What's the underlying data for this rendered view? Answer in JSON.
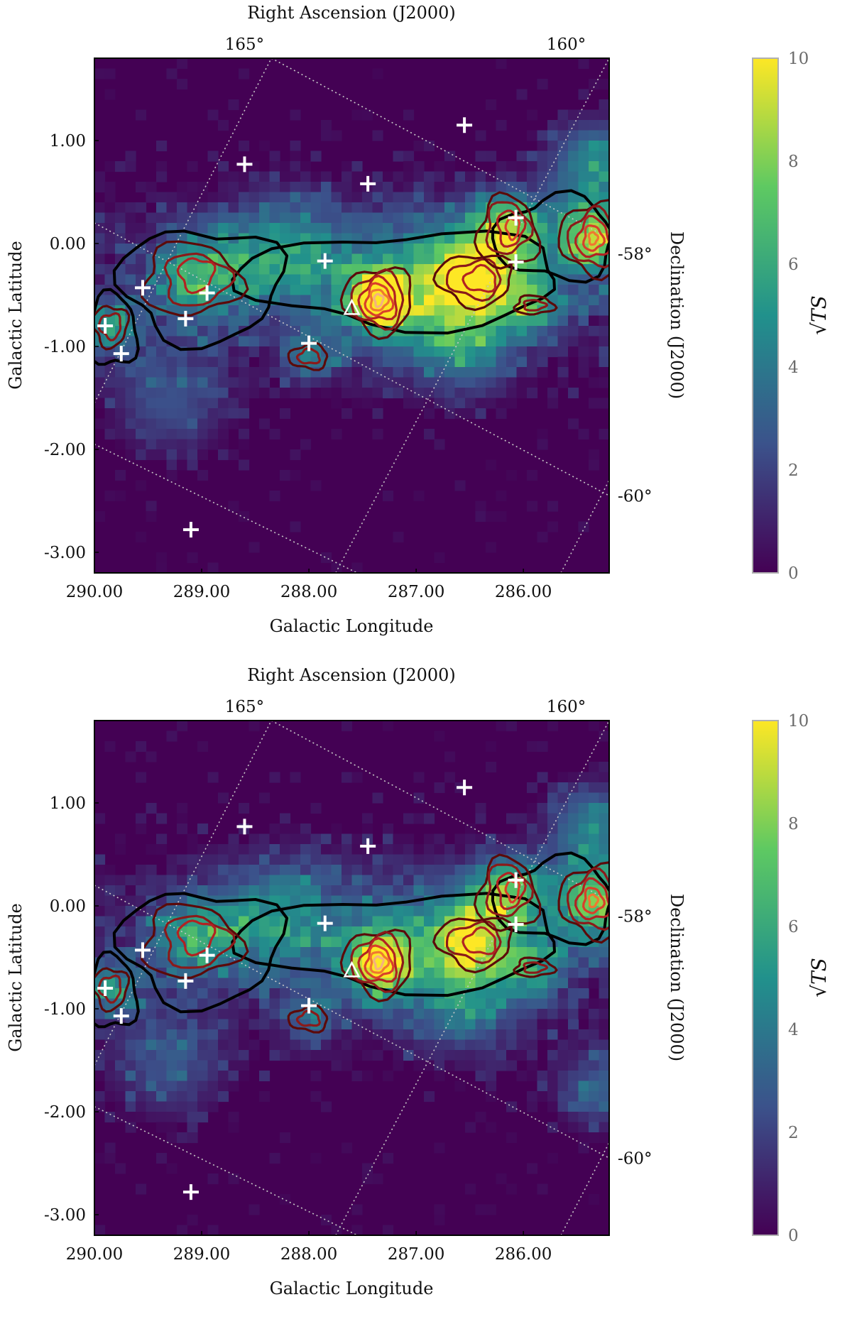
{
  "colors": {
    "background": "#440154",
    "grid": "#c8c8c8",
    "frame": "#000000",
    "marker": "#ffffff",
    "colormap": [
      "#440154",
      "#3b528b",
      "#21918c",
      "#5ec962",
      "#fde725"
    ],
    "contour_colors": [
      "#000000",
      "#5c0a0a",
      "#8b1a1a",
      "#b22222",
      "#d9402a",
      "#f07830",
      "#f5b080",
      "#ffffff"
    ]
  },
  "chart_data": [
    {
      "type": "heatmap",
      "panel": "top",
      "xlabel": "Galactic Longitude",
      "ylabel": "Galactic Latitude",
      "top_axis_label": "Right Ascension (J2000)",
      "right_axis_label": "Declination (J2000)",
      "colorbar_label": "√TS",
      "xlim": [
        290.0,
        285.2
      ],
      "ylim": [
        -3.2,
        1.8
      ],
      "x_ticks": [
        290.0,
        289.0,
        288.0,
        287.0,
        286.0
      ],
      "x_tick_labels": [
        "290.00",
        "289.00",
        "288.00",
        "287.00",
        "286.00"
      ],
      "y_ticks": [
        1.0,
        0.0,
        -1.0,
        -2.0,
        -3.0
      ],
      "y_tick_labels": [
        "1.00",
        "0.00",
        "-1.00",
        "-2.00",
        "-3.00"
      ],
      "ra_ticks": [
        165,
        160
      ],
      "ra_tick_labels": [
        "165°",
        "160°"
      ],
      "dec_ticks": [
        -58,
        -60
      ],
      "dec_tick_labels": [
        "-58°",
        "-60°"
      ],
      "colorbar_range": [
        0,
        10
      ],
      "colorbar_ticks": [
        "0",
        "2",
        "4",
        "6",
        "8",
        "10"
      ],
      "hotspots": [
        {
          "l": 287.35,
          "b": -0.55,
          "amp": 9.2,
          "s": 0.18
        },
        {
          "l": 286.45,
          "b": -0.35,
          "amp": 7.0,
          "s": 0.3
        },
        {
          "l": 286.15,
          "b": 0.15,
          "amp": 7.2,
          "s": 0.24
        },
        {
          "l": 285.35,
          "b": 0.05,
          "amp": 7.8,
          "s": 0.26
        },
        {
          "l": 289.05,
          "b": -0.3,
          "amp": 5.2,
          "s": 0.3
        },
        {
          "l": 289.85,
          "b": -0.8,
          "amp": 5.0,
          "s": 0.18
        },
        {
          "l": 288.25,
          "b": -0.1,
          "amp": 4.6,
          "s": 0.4
        },
        {
          "l": 287.0,
          "b": -0.45,
          "amp": 5.2,
          "s": 0.5
        },
        {
          "l": 285.9,
          "b": -0.6,
          "amp": 4.6,
          "s": 0.22
        },
        {
          "l": 288.0,
          "b": -1.1,
          "amp": 3.8,
          "s": 0.18
        },
        {
          "l": 285.35,
          "b": 0.8,
          "amp": 5.0,
          "s": 0.3
        },
        {
          "l": 286.5,
          "b": -1.05,
          "amp": 3.2,
          "s": 0.3
        },
        {
          "l": 289.3,
          "b": -1.55,
          "amp": 3.0,
          "s": 0.4
        }
      ],
      "contours": [
        {
          "level": 0,
          "cx": 289.0,
          "cy": -0.4,
          "rx": 0.75,
          "ry": 0.55
        },
        {
          "level": 0,
          "cx": 287.1,
          "cy": -0.35,
          "rx": 1.5,
          "ry": 0.45
        },
        {
          "level": 0,
          "cx": 285.7,
          "cy": 0.05,
          "rx": 0.55,
          "ry": 0.4
        },
        {
          "level": 0,
          "cx": 289.85,
          "cy": -0.85,
          "rx": 0.25,
          "ry": 0.35
        },
        {
          "level": 1,
          "cx": 289.1,
          "cy": -0.35,
          "rx": 0.45,
          "ry": 0.35
        },
        {
          "level": 2,
          "cx": 289.05,
          "cy": -0.35,
          "rx": 0.3,
          "ry": 0.25
        },
        {
          "level": 3,
          "cx": 289.05,
          "cy": -0.3,
          "rx": 0.16,
          "ry": 0.16
        },
        {
          "level": 1,
          "cx": 287.35,
          "cy": -0.55,
          "rx": 0.32,
          "ry": 0.32
        },
        {
          "level": 2,
          "cx": 287.35,
          "cy": -0.55,
          "rx": 0.24,
          "ry": 0.26
        },
        {
          "level": 3,
          "cx": 287.35,
          "cy": -0.55,
          "rx": 0.17,
          "ry": 0.2
        },
        {
          "level": 4,
          "cx": 287.35,
          "cy": -0.55,
          "rx": 0.12,
          "ry": 0.15
        },
        {
          "level": 5,
          "cx": 287.35,
          "cy": -0.55,
          "rx": 0.08,
          "ry": 0.1
        },
        {
          "level": 6,
          "cx": 287.35,
          "cy": -0.55,
          "rx": 0.04,
          "ry": 0.06
        },
        {
          "level": 1,
          "cx": 286.45,
          "cy": -0.35,
          "rx": 0.35,
          "ry": 0.25
        },
        {
          "level": 2,
          "cx": 286.45,
          "cy": -0.35,
          "rx": 0.25,
          "ry": 0.18
        },
        {
          "level": 3,
          "cx": 286.4,
          "cy": -0.35,
          "rx": 0.15,
          "ry": 0.12
        },
        {
          "level": 1,
          "cx": 286.15,
          "cy": 0.1,
          "rx": 0.28,
          "ry": 0.35
        },
        {
          "level": 2,
          "cx": 286.15,
          "cy": 0.15,
          "rx": 0.2,
          "ry": 0.25
        },
        {
          "level": 3,
          "cx": 286.12,
          "cy": 0.15,
          "rx": 0.12,
          "ry": 0.17
        },
        {
          "level": 4,
          "cx": 286.1,
          "cy": 0.15,
          "rx": 0.06,
          "ry": 0.1
        },
        {
          "level": 1,
          "cx": 285.35,
          "cy": 0.05,
          "rx": 0.3,
          "ry": 0.35
        },
        {
          "level": 2,
          "cx": 285.35,
          "cy": 0.05,
          "rx": 0.22,
          "ry": 0.27
        },
        {
          "level": 3,
          "cx": 285.35,
          "cy": 0.05,
          "rx": 0.15,
          "ry": 0.19
        },
        {
          "level": 4,
          "cx": 285.35,
          "cy": 0.05,
          "rx": 0.09,
          "ry": 0.12
        },
        {
          "level": 5,
          "cx": 285.35,
          "cy": 0.05,
          "rx": 0.04,
          "ry": 0.06
        },
        {
          "level": 1,
          "cx": 289.85,
          "cy": -0.8,
          "rx": 0.16,
          "ry": 0.2
        },
        {
          "level": 2,
          "cx": 289.85,
          "cy": -0.8,
          "rx": 0.1,
          "ry": 0.12
        },
        {
          "level": 1,
          "cx": 288.0,
          "cy": -1.1,
          "rx": 0.18,
          "ry": 0.12
        },
        {
          "level": 2,
          "cx": 288.0,
          "cy": -1.1,
          "rx": 0.1,
          "ry": 0.07
        },
        {
          "level": 1,
          "cx": 285.9,
          "cy": -0.6,
          "rx": 0.18,
          "ry": 0.09
        },
        {
          "level": 2,
          "cx": 285.9,
          "cy": -0.6,
          "rx": 0.1,
          "ry": 0.05
        }
      ],
      "sources": [
        {
          "l": 286.55,
          "b": 1.15
        },
        {
          "l": 288.6,
          "b": 0.77
        },
        {
          "l": 287.45,
          "b": 0.58
        },
        {
          "l": 286.07,
          "b": 0.25
        },
        {
          "l": 287.85,
          "b": -0.17
        },
        {
          "l": 286.07,
          "b": -0.18
        },
        {
          "l": 289.55,
          "b": -0.43
        },
        {
          "l": 288.95,
          "b": -0.48
        },
        {
          "l": 289.15,
          "b": -0.73
        },
        {
          "l": 289.9,
          "b": -0.8
        },
        {
          "l": 289.75,
          "b": -1.07
        },
        {
          "l": 288.0,
          "b": -0.97
        },
        {
          "l": 289.1,
          "b": -2.78
        }
      ],
      "triangle": {
        "l": 287.6,
        "b": -0.63
      }
    },
    {
      "type": "heatmap",
      "panel": "bottom",
      "xlabel": "Galactic Longitude",
      "ylabel": "Galactic Latitude",
      "top_axis_label": "Right Ascension (J2000)",
      "right_axis_label": "Declination (J2000)",
      "colorbar_label": "√TS",
      "xlim": [
        290.0,
        285.2
      ],
      "ylim": [
        -3.2,
        1.8
      ],
      "x_ticks": [
        290.0,
        289.0,
        288.0,
        287.0,
        286.0
      ],
      "x_tick_labels": [
        "290.00",
        "289.00",
        "288.00",
        "287.00",
        "286.00"
      ],
      "y_ticks": [
        1.0,
        0.0,
        -1.0,
        -2.0,
        -3.0
      ],
      "y_tick_labels": [
        "1.00",
        "0.00",
        "-1.00",
        "-2.00",
        "-3.00"
      ],
      "ra_ticks": [
        165,
        160
      ],
      "ra_tick_labels": [
        "165°",
        "160°"
      ],
      "dec_ticks": [
        -58,
        -60
      ],
      "dec_tick_labels": [
        "-58°",
        "-60°"
      ],
      "colorbar_range": [
        0,
        10
      ],
      "colorbar_ticks": [
        "0",
        "2",
        "4",
        "6",
        "8",
        "10"
      ],
      "hotspots": [
        {
          "l": 287.35,
          "b": -0.55,
          "amp": 8.0,
          "s": 0.2
        },
        {
          "l": 286.45,
          "b": -0.35,
          "amp": 6.6,
          "s": 0.28
        },
        {
          "l": 286.15,
          "b": 0.15,
          "amp": 6.2,
          "s": 0.24
        },
        {
          "l": 285.35,
          "b": 0.05,
          "amp": 6.8,
          "s": 0.28
        },
        {
          "l": 289.05,
          "b": -0.3,
          "amp": 4.4,
          "s": 0.3
        },
        {
          "l": 289.85,
          "b": -0.8,
          "amp": 4.2,
          "s": 0.18
        },
        {
          "l": 288.25,
          "b": -0.1,
          "amp": 4.2,
          "s": 0.4
        },
        {
          "l": 287.0,
          "b": -0.45,
          "amp": 3.8,
          "s": 0.5
        },
        {
          "l": 285.9,
          "b": -0.6,
          "amp": 4.0,
          "s": 0.22
        },
        {
          "l": 288.0,
          "b": -1.1,
          "amp": 3.2,
          "s": 0.18
        },
        {
          "l": 285.35,
          "b": 0.8,
          "amp": 4.4,
          "s": 0.3
        },
        {
          "l": 286.5,
          "b": -1.05,
          "amp": 2.8,
          "s": 0.3
        },
        {
          "l": 289.3,
          "b": -1.55,
          "amp": 3.0,
          "s": 0.4
        },
        {
          "l": 285.3,
          "b": -1.8,
          "amp": 3.4,
          "s": 0.3
        }
      ],
      "contours": [
        {
          "level": 0,
          "cx": 289.0,
          "cy": -0.4,
          "rx": 0.75,
          "ry": 0.55
        },
        {
          "level": 0,
          "cx": 287.1,
          "cy": -0.35,
          "rx": 1.5,
          "ry": 0.45
        },
        {
          "level": 0,
          "cx": 285.7,
          "cy": 0.05,
          "rx": 0.55,
          "ry": 0.4
        },
        {
          "level": 0,
          "cx": 289.85,
          "cy": -0.85,
          "rx": 0.25,
          "ry": 0.35
        },
        {
          "level": 1,
          "cx": 289.1,
          "cy": -0.35,
          "rx": 0.45,
          "ry": 0.35
        },
        {
          "level": 2,
          "cx": 289.05,
          "cy": -0.35,
          "rx": 0.3,
          "ry": 0.25
        },
        {
          "level": 3,
          "cx": 289.05,
          "cy": -0.3,
          "rx": 0.16,
          "ry": 0.16
        },
        {
          "level": 1,
          "cx": 287.35,
          "cy": -0.55,
          "rx": 0.32,
          "ry": 0.32
        },
        {
          "level": 2,
          "cx": 287.35,
          "cy": -0.55,
          "rx": 0.24,
          "ry": 0.26
        },
        {
          "level": 3,
          "cx": 287.35,
          "cy": -0.55,
          "rx": 0.17,
          "ry": 0.2
        },
        {
          "level": 4,
          "cx": 287.35,
          "cy": -0.55,
          "rx": 0.12,
          "ry": 0.15
        },
        {
          "level": 5,
          "cx": 287.35,
          "cy": -0.55,
          "rx": 0.08,
          "ry": 0.1
        },
        {
          "level": 6,
          "cx": 287.35,
          "cy": -0.55,
          "rx": 0.04,
          "ry": 0.06
        },
        {
          "level": 1,
          "cx": 286.45,
          "cy": -0.35,
          "rx": 0.35,
          "ry": 0.25
        },
        {
          "level": 2,
          "cx": 286.45,
          "cy": -0.35,
          "rx": 0.25,
          "ry": 0.18
        },
        {
          "level": 3,
          "cx": 286.4,
          "cy": -0.35,
          "rx": 0.15,
          "ry": 0.12
        },
        {
          "level": 1,
          "cx": 286.15,
          "cy": 0.1,
          "rx": 0.28,
          "ry": 0.35
        },
        {
          "level": 2,
          "cx": 286.15,
          "cy": 0.15,
          "rx": 0.2,
          "ry": 0.25
        },
        {
          "level": 3,
          "cx": 286.12,
          "cy": 0.15,
          "rx": 0.12,
          "ry": 0.17
        },
        {
          "level": 4,
          "cx": 286.1,
          "cy": 0.15,
          "rx": 0.06,
          "ry": 0.1
        },
        {
          "level": 1,
          "cx": 285.35,
          "cy": 0.05,
          "rx": 0.3,
          "ry": 0.35
        },
        {
          "level": 2,
          "cx": 285.35,
          "cy": 0.05,
          "rx": 0.22,
          "ry": 0.27
        },
        {
          "level": 3,
          "cx": 285.35,
          "cy": 0.05,
          "rx": 0.15,
          "ry": 0.19
        },
        {
          "level": 4,
          "cx": 285.35,
          "cy": 0.05,
          "rx": 0.09,
          "ry": 0.12
        },
        {
          "level": 5,
          "cx": 285.35,
          "cy": 0.05,
          "rx": 0.04,
          "ry": 0.06
        },
        {
          "level": 1,
          "cx": 289.85,
          "cy": -0.8,
          "rx": 0.16,
          "ry": 0.2
        },
        {
          "level": 2,
          "cx": 289.85,
          "cy": -0.8,
          "rx": 0.1,
          "ry": 0.12
        },
        {
          "level": 1,
          "cx": 288.0,
          "cy": -1.1,
          "rx": 0.18,
          "ry": 0.12
        },
        {
          "level": 2,
          "cx": 288.0,
          "cy": -1.1,
          "rx": 0.1,
          "ry": 0.07
        },
        {
          "level": 1,
          "cx": 285.9,
          "cy": -0.6,
          "rx": 0.18,
          "ry": 0.09
        },
        {
          "level": 2,
          "cx": 285.9,
          "cy": -0.6,
          "rx": 0.1,
          "ry": 0.05
        }
      ],
      "sources": [
        {
          "l": 286.55,
          "b": 1.15
        },
        {
          "l": 288.6,
          "b": 0.77
        },
        {
          "l": 287.45,
          "b": 0.58
        },
        {
          "l": 286.07,
          "b": 0.25
        },
        {
          "l": 287.85,
          "b": -0.17
        },
        {
          "l": 286.07,
          "b": -0.18
        },
        {
          "l": 289.55,
          "b": -0.43
        },
        {
          "l": 288.95,
          "b": -0.48
        },
        {
          "l": 289.15,
          "b": -0.73
        },
        {
          "l": 289.9,
          "b": -0.8
        },
        {
          "l": 289.75,
          "b": -1.07
        },
        {
          "l": 288.0,
          "b": -0.97
        },
        {
          "l": 289.1,
          "b": -2.78
        }
      ],
      "triangle": {
        "l": 287.6,
        "b": -0.63
      }
    }
  ]
}
